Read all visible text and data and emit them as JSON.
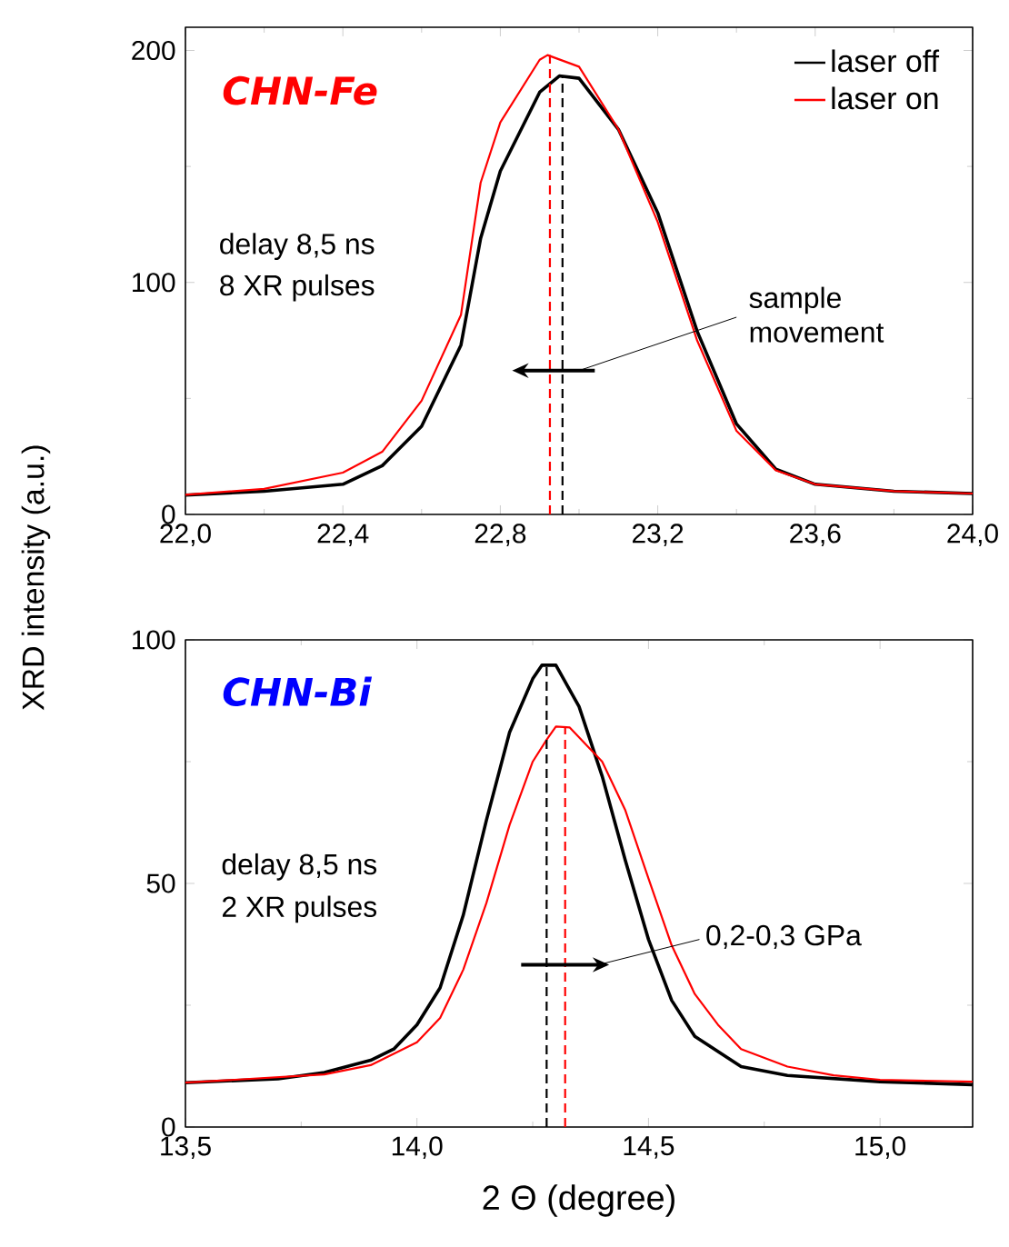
{
  "chart_data": [
    {
      "type": "line",
      "title": "CHN-Fe",
      "ylabel": "XRD intensity (a.u.)",
      "xlim": [
        22.0,
        24.0
      ],
      "ylim": [
        0,
        210
      ],
      "xticks": [
        {
          "value": 22.0,
          "label": "22,0"
        },
        {
          "value": 22.4,
          "label": "22,4"
        },
        {
          "value": 22.8,
          "label": "22,8"
        },
        {
          "value": 23.2,
          "label": "23,2"
        },
        {
          "value": 23.6,
          "label": "23,6"
        },
        {
          "value": 24.0,
          "label": "24,0"
        }
      ],
      "yticks": [
        0,
        100,
        200
      ],
      "legend": "top right",
      "annotations": [
        "delay 8,5 ns",
        "8 XR pulses",
        "sample movement"
      ],
      "ref_lines": [
        {
          "axis": "x",
          "value": 22.926,
          "color": "#ff0000",
          "line_style": "dashed"
        },
        {
          "axis": "x",
          "value": 22.958,
          "color": "#000000",
          "line_style": "dashed"
        }
      ],
      "series": [
        {
          "name": "laser off",
          "color": "#000000",
          "x": [
            22.0,
            22.2,
            22.4,
            22.5,
            22.6,
            22.7,
            22.75,
            22.8,
            22.9,
            22.95,
            23.0,
            23.1,
            23.2,
            23.3,
            23.4,
            23.5,
            23.6,
            23.8,
            24.0
          ],
          "values": [
            8.3,
            10,
            13,
            21,
            38,
            73,
            119,
            148,
            182,
            189,
            188,
            166,
            130,
            79,
            39,
            19.5,
            13,
            10,
            9
          ]
        },
        {
          "name": "laser on",
          "color": "#ff0000",
          "x": [
            22.0,
            22.2,
            22.4,
            22.5,
            22.6,
            22.7,
            22.75,
            22.8,
            22.9,
            22.92,
            23.0,
            23.1,
            23.2,
            23.3,
            23.4,
            23.5,
            23.6,
            23.8,
            24.0
          ],
          "values": [
            8.5,
            11,
            18,
            27,
            49,
            86,
            143,
            169,
            196,
            198,
            193,
            166,
            126,
            75,
            36,
            19,
            13,
            10,
            9
          ]
        }
      ]
    },
    {
      "type": "line",
      "title": "CHN-Bi",
      "xlabel": "2 Θ (degree)",
      "xlim": [
        13.5,
        15.2
      ],
      "ylim": [
        0,
        100
      ],
      "xticks": [
        {
          "value": 13.5,
          "label": "13,5"
        },
        {
          "value": 14.0,
          "label": "14,0"
        },
        {
          "value": 14.5,
          "label": "14,5"
        },
        {
          "value": 15.0,
          "label": "15,0"
        }
      ],
      "yticks": [
        0,
        50,
        100
      ],
      "annotations": [
        "delay 8,5 ns",
        "2 XR pulses",
        "0,2-0,3 GPa"
      ],
      "ref_lines": [
        {
          "axis": "x",
          "value": 14.28,
          "color": "#000000",
          "line_style": "dashed"
        },
        {
          "axis": "x",
          "value": 14.32,
          "color": "#ff0000",
          "line_style": "dashed"
        }
      ],
      "series": [
        {
          "color": "#000000",
          "x": [
            13.5,
            13.7,
            13.8,
            13.9,
            13.95,
            14.0,
            14.05,
            14.1,
            14.15,
            14.2,
            14.25,
            14.27,
            14.3,
            14.35,
            14.4,
            14.45,
            14.5,
            14.55,
            14.6,
            14.7,
            14.8,
            15.0,
            15.2
          ],
          "values": [
            9.1,
            9.9,
            11.2,
            13.7,
            16,
            21,
            28.6,
            43.5,
            63,
            81,
            92,
            94.8,
            94.8,
            86.3,
            72,
            54.7,
            38.5,
            26,
            18.6,
            12.4,
            10.6,
            9.3,
            8.7
          ]
        },
        {
          "color": "#ff0000",
          "x": [
            13.5,
            13.8,
            13.9,
            14.0,
            14.05,
            14.1,
            14.15,
            14.2,
            14.25,
            14.28,
            14.3,
            14.33,
            14.4,
            14.45,
            14.5,
            14.55,
            14.6,
            14.65,
            14.7,
            14.8,
            14.9,
            15.0,
            15.2
          ],
          "values": [
            9.1,
            10.8,
            12.7,
            17.4,
            22.4,
            32.3,
            46,
            62,
            75,
            79.5,
            82.2,
            82,
            75,
            65,
            51,
            37.3,
            27.3,
            21,
            16,
            12.4,
            10.6,
            9.7,
            9.3
          ]
        }
      ]
    }
  ]
}
